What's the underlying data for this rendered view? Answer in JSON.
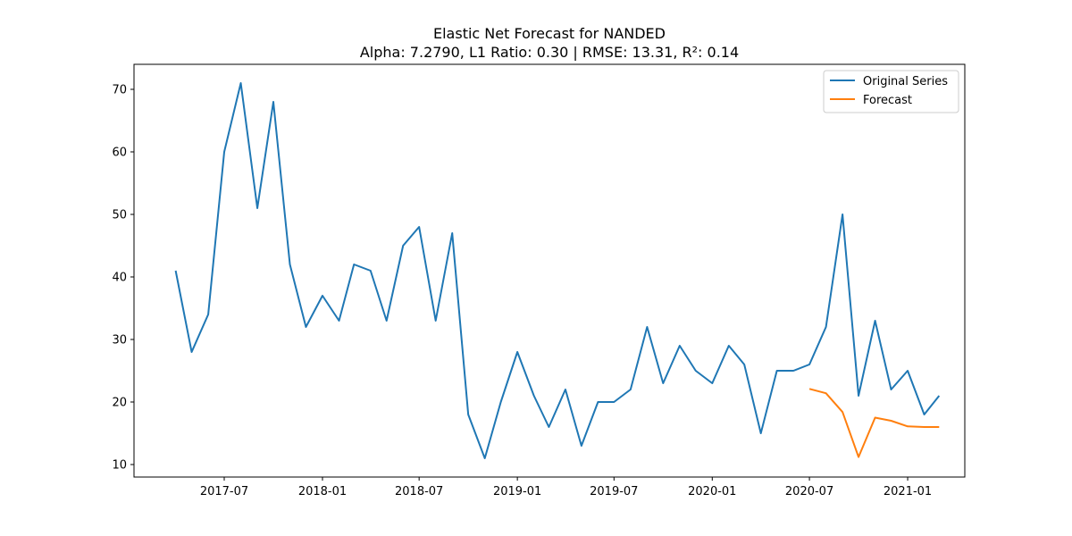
{
  "chart_data": {
    "type": "line",
    "title": "Elastic Net Forecast for NANDED",
    "subtitle": "Alpha: 7.2790, L1 Ratio: 0.30 | RMSE: 13.31, R²: 0.14",
    "xlabel": "",
    "ylabel": "",
    "x_ticks": [
      "2017-07",
      "2018-01",
      "2018-07",
      "2019-01",
      "2019-07",
      "2020-01",
      "2020-07",
      "2021-01"
    ],
    "y_ticks": [
      10,
      20,
      30,
      40,
      50,
      60,
      70
    ],
    "xlim": [
      "2017-01-13",
      "2021-04-18"
    ],
    "ylim": [
      8.0,
      74.0
    ],
    "grid": false,
    "legend_position": "top-right",
    "series": [
      {
        "name": "Original Series",
        "color": "#1f77b4",
        "x": [
          "2017-04",
          "2017-05",
          "2017-06",
          "2017-07",
          "2017-08",
          "2017-09",
          "2017-10",
          "2017-11",
          "2017-12",
          "2018-01",
          "2018-02",
          "2018-03",
          "2018-04",
          "2018-05",
          "2018-06",
          "2018-07",
          "2018-08",
          "2018-09",
          "2018-10",
          "2018-11",
          "2018-12",
          "2019-01",
          "2019-02",
          "2019-03",
          "2019-04",
          "2019-05",
          "2019-06",
          "2019-07",
          "2019-08",
          "2019-09",
          "2019-10",
          "2019-11",
          "2019-12",
          "2020-01",
          "2020-02",
          "2020-03",
          "2020-04",
          "2020-05",
          "2020-06",
          "2020-07",
          "2020-08",
          "2020-09",
          "2020-10",
          "2020-11",
          "2020-12",
          "2021-01",
          "2021-02",
          "2021-03"
        ],
        "values": [
          41,
          28,
          34,
          60,
          71,
          51,
          68,
          42,
          32,
          37,
          33,
          42,
          41,
          33,
          45,
          48,
          33,
          47,
          18,
          11,
          20,
          28,
          21,
          16,
          22,
          13,
          20,
          20,
          22,
          32,
          23,
          29,
          25,
          23,
          29,
          26,
          15,
          25,
          25,
          26,
          32,
          50,
          21,
          33,
          22,
          25,
          18,
          21
        ]
      },
      {
        "name": "Forecast",
        "color": "#ff7f0e",
        "x": [
          "2020-07",
          "2020-08",
          "2020-09",
          "2020-10",
          "2020-11",
          "2020-12",
          "2021-01",
          "2021-02",
          "2021-03"
        ],
        "values": [
          22.1,
          21.4,
          18.4,
          11.2,
          17.5,
          17.0,
          16.1,
          16.0,
          16.0
        ]
      }
    ]
  }
}
